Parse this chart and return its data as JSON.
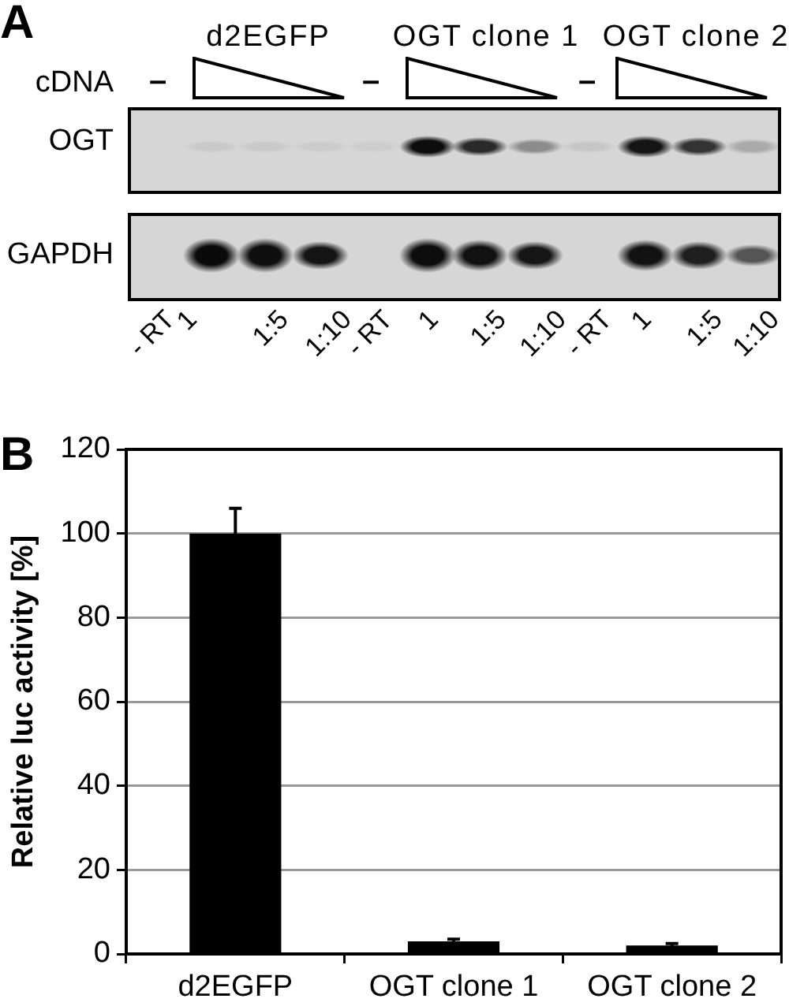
{
  "chart_data": [
    {
      "type": "other",
      "title": "A",
      "annotations": [
        "d2EGFP",
        "OGT clone 1",
        "OGT clone 2",
        "cDNA",
        "–",
        "–",
        "–",
        "OGT",
        "GAPDH",
        "- RT",
        "1",
        "1:5",
        "1:10",
        "- RT",
        "1",
        "1:5",
        "1:10",
        "- RT",
        "1",
        "1:5",
        "1:10"
      ]
    },
    {
      "type": "bar",
      "title": "B",
      "ylabel": "Relative luc activity [%]",
      "categories": [
        "d2EGFP",
        "OGT clone 1",
        "OGT clone 2"
      ],
      "values": [
        100,
        3,
        2
      ],
      "errors": [
        6,
        0.5,
        0.5
      ],
      "color": "#000000",
      "ylim": [
        0,
        120
      ],
      "yticks": [
        0,
        20,
        40,
        60,
        80,
        100,
        120
      ],
      "grid": "y"
    }
  ]
}
